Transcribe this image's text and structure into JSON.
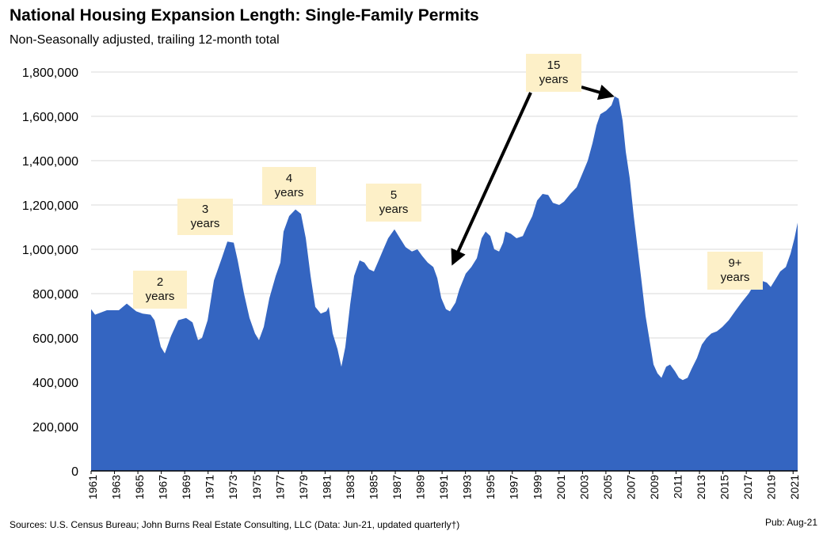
{
  "chart_data": {
    "type": "area",
    "title": "National Housing Expansion Length: Single-Family Permits",
    "subtitle": "Non-Seasonally adjusted, trailing 12-month total",
    "source": "Sources: U.S. Census Bureau; John Burns Real Estate Consulting, LLC (Data: Jun-21, updated quarterly†)",
    "pub": "Pub: Aug-21",
    "color": "#3465c1",
    "grid": true,
    "annotations": [
      "2 years",
      "3 years",
      "4 years",
      "5 years",
      "15 years",
      "9+ years"
    ],
    "xlim": [
      1961,
      2021.39
    ],
    "xticks": [
      1961,
      1963,
      1965,
      1967,
      1969,
      1971,
      1973,
      1975,
      1977,
      1979,
      1981,
      1983,
      1985,
      1987,
      1989,
      1991,
      1993,
      1995,
      1997,
      1999,
      2001,
      2003,
      2005,
      2007,
      2009,
      2011,
      2013,
      2015,
      2017,
      2019,
      2021
    ],
    "ylim": [
      0,
      1800000
    ],
    "yticks": [
      0,
      {
        "value": 200000,
        "label": "200,000"
      },
      {
        "value": 400000,
        "label": "400,000"
      },
      {
        "value": 600000,
        "label": "600,000"
      },
      {
        "value": 800000,
        "label": "800,000"
      },
      {
        "value": 1000000,
        "label": "1,000,000"
      },
      {
        "value": 1200000,
        "label": "1,200,000"
      },
      {
        "value": 1400000,
        "label": "1,400,000"
      },
      {
        "value": 1600000,
        "label": "1,600,000"
      },
      {
        "value": 1800000,
        "label": "1,800,000"
      }
    ],
    "x": [
      1961.0,
      1961.34,
      1962.35,
      1963.37,
      1964.05,
      1964.86,
      1965.4,
      1966.08,
      1966.42,
      1966.96,
      1967.3,
      1967.84,
      1968.45,
      1969.12,
      1969.67,
      1970.14,
      1970.48,
      1970.96,
      1971.5,
      1972.17,
      1972.65,
      1973.19,
      1973.53,
      1974.07,
      1974.54,
      1975.01,
      1975.35,
      1975.76,
      1976.24,
      1976.78,
      1977.18,
      1977.45,
      1977.93,
      1978.47,
      1978.94,
      1979.35,
      1979.76,
      1980.16,
      1980.63,
      1981.11,
      1981.31,
      1981.65,
      1982.06,
      1982.39,
      1982.73,
      1983.14,
      1983.48,
      1983.95,
      1984.36,
      1984.76,
      1985.17,
      1985.58,
      1985.98,
      1986.39,
      1986.93,
      1987.4,
      1987.88,
      1988.42,
      1988.89,
      1989.3,
      1989.77,
      1990.25,
      1990.59,
      1990.93,
      1991.33,
      1991.67,
      1992.15,
      1992.48,
      1993.02,
      1993.5,
      1993.97,
      1994.38,
      1994.72,
      1995.12,
      1995.46,
      1995.87,
      1996.21,
      1996.41,
      1996.88,
      1997.36,
      1997.9,
      1998.24,
      1998.71,
      1999.12,
      1999.59,
      2000.07,
      2000.47,
      2001.01,
      2001.42,
      2001.96,
      2002.5,
      2002.98,
      2003.45,
      2003.86,
      2004.2,
      2004.53,
      2005.01,
      2005.48,
      2005.75,
      2006.09,
      2006.43,
      2006.7,
      2007.04,
      2007.38,
      2007.72,
      2008.06,
      2008.39,
      2008.73,
      2009.07,
      2009.41,
      2009.75,
      2010.15,
      2010.49,
      2010.9,
      2011.24,
      2011.57,
      2011.98,
      2012.32,
      2012.79,
      2013.2,
      2013.61,
      2014.01,
      2014.49,
      2014.96,
      2015.5,
      2016.04,
      2016.59,
      2017.2,
      2017.67,
      2018.21,
      2018.75,
      2019.09,
      2019.56,
      2019.9,
      2020.38,
      2020.78,
      2021.12,
      2021.39
    ],
    "values": [
      730000,
      705000,
      725000,
      725000,
      755000,
      720000,
      710000,
      705000,
      680000,
      560000,
      530000,
      610000,
      680000,
      690000,
      670000,
      590000,
      600000,
      680000,
      860000,
      960000,
      1035000,
      1030000,
      950000,
      800000,
      690000,
      620000,
      590000,
      650000,
      780000,
      880000,
      940000,
      1080000,
      1150000,
      1180000,
      1160000,
      1050000,
      880000,
      740000,
      710000,
      720000,
      740000,
      620000,
      550000,
      470000,
      560000,
      750000,
      880000,
      950000,
      940000,
      910000,
      900000,
      950000,
      1000000,
      1050000,
      1090000,
      1050000,
      1010000,
      990000,
      1000000,
      970000,
      940000,
      920000,
      870000,
      780000,
      730000,
      720000,
      760000,
      820000,
      890000,
      920000,
      960000,
      1050000,
      1080000,
      1060000,
      1000000,
      990000,
      1030000,
      1080000,
      1070000,
      1050000,
      1060000,
      1100000,
      1150000,
      1220000,
      1250000,
      1245000,
      1210000,
      1200000,
      1215000,
      1250000,
      1280000,
      1340000,
      1400000,
      1480000,
      1560000,
      1610000,
      1625000,
      1650000,
      1690000,
      1680000,
      1580000,
      1440000,
      1320000,
      1150000,
      1000000,
      850000,
      700000,
      590000,
      480000,
      440000,
      420000,
      470000,
      480000,
      450000,
      420000,
      410000,
      420000,
      460000,
      510000,
      570000,
      600000,
      620000,
      630000,
      650000,
      680000,
      720000,
      760000,
      800000,
      840000,
      860000,
      850000,
      830000,
      870000,
      900000,
      920000,
      980000,
      1050000,
      1120000
    ]
  }
}
